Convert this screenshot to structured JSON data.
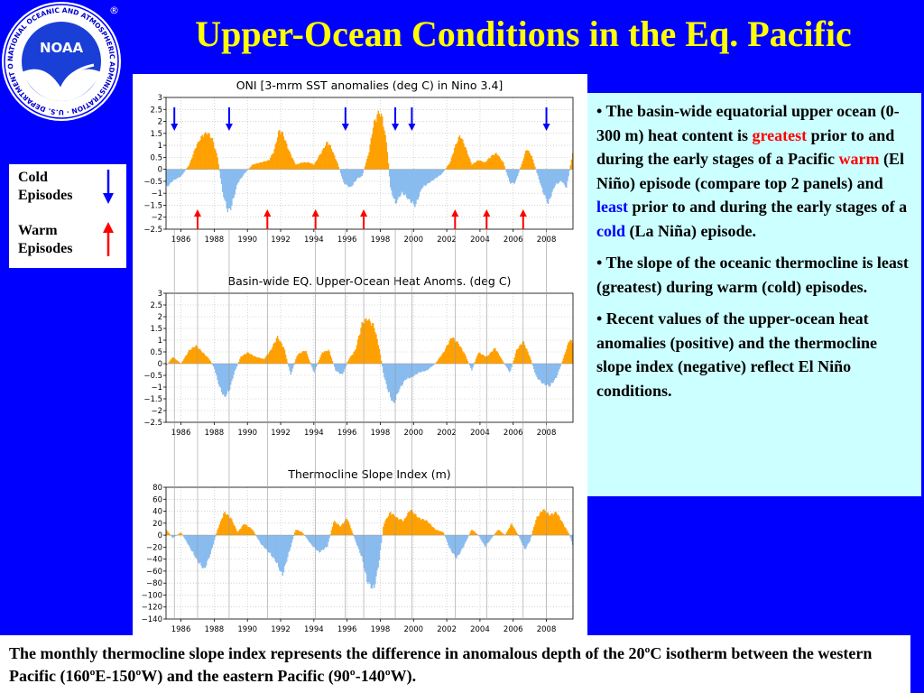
{
  "slide_title": "Upper-Ocean Conditions in the Eq. Pacific",
  "logo": {
    "ring_text": "NATIONAL OCEANIC AND ATMOSPHERIC ADMINISTRATION · U.S. DEPARTMENT OF COMMERCE",
    "center_text": "NOAA",
    "registered_mark": "®"
  },
  "legend": {
    "cold_label_1": "Cold",
    "cold_label_2": "Episodes",
    "warm_label_1": "Warm",
    "warm_label_2": "Episodes",
    "cold_color": "#0000ff",
    "warm_color": "#ff0000"
  },
  "bullets": [
    {
      "parts": [
        {
          "t": "• The basin-wide equatorial upper ocean (0-300 m) heat content is "
        },
        {
          "t": "greatest",
          "c": "red"
        },
        {
          "t": " prior to and during the early stages of a Pacific "
        },
        {
          "t": "warm",
          "c": "red"
        },
        {
          "t": " (El Niño) episode (compare top 2 panels) and "
        },
        {
          "t": "least",
          "c": "blue"
        },
        {
          "t": " prior to and during the early stages of a "
        },
        {
          "t": "cold",
          "c": "blue"
        },
        {
          "t": " (La Niña) episode."
        }
      ]
    },
    {
      "parts": [
        {
          "t": "• The slope of the oceanic thermocline is least (greatest) during warm (cold) episodes."
        }
      ]
    },
    {
      "parts": [
        {
          "t": "• Recent values of the upper-ocean heat anomalies (positive) and the thermocline slope index (negative) reflect El Niño conditions."
        }
      ]
    }
  ],
  "caption": "The monthly thermocline slope index represents the difference in anomalous depth of the 20ºC isotherm between the western Pacific (160ºE-150ºW) and the eastern Pacific (90º-140ºW).",
  "colors": {
    "positive_fill": "#ffa000",
    "negative_fill": "#88bbee",
    "background": "#0000ff",
    "title": "#ffff00"
  },
  "chart_data": [
    {
      "type": "area",
      "title": "ONI [3-mrm SST anomalies (deg C) in Nino 3.4]",
      "xlim": [
        1985.1,
        2009.6
      ],
      "ylim": [
        -2.5,
        3
      ],
      "yticks": [
        3,
        2.5,
        2,
        1.5,
        1,
        0.5,
        0,
        -0.5,
        -1,
        -1.5,
        -2,
        -2.5
      ],
      "ytick_labels": [
        "3",
        "2.5",
        "2",
        "1.5",
        "1",
        "0.5",
        "0",
        "−0.5",
        "−1",
        "−1.5",
        "−2",
        "−2.5"
      ],
      "xticks": [
        1986,
        1988,
        1990,
        1992,
        1994,
        1996,
        1998,
        2000,
        2002,
        2004,
        2006,
        2008
      ],
      "grid": true,
      "x": [
        1985.1,
        1985.5,
        1986.0,
        1986.5,
        1986.9,
        1987.3,
        1987.6,
        1987.9,
        1988.2,
        1988.5,
        1988.8,
        1989.0,
        1989.4,
        1989.8,
        1990.3,
        1990.8,
        1991.3,
        1991.6,
        1991.9,
        1992.1,
        1992.5,
        1992.9,
        1993.3,
        1993.7,
        1994.0,
        1994.5,
        1994.8,
        1995.0,
        1995.4,
        1995.8,
        1996.2,
        1996.6,
        1996.9,
        1997.3,
        1997.6,
        1997.9,
        1998.1,
        1998.4,
        1998.6,
        1998.9,
        1999.3,
        1999.7,
        2000.1,
        2000.5,
        2000.9,
        2001.3,
        2001.7,
        2002.2,
        2002.5,
        2002.8,
        2003.1,
        2003.5,
        2003.9,
        2004.3,
        2004.7,
        2005.0,
        2005.4,
        2005.8,
        2006.1,
        2006.5,
        2006.8,
        2007.1,
        2007.4,
        2007.8,
        2008.1,
        2008.5,
        2008.9,
        2009.2,
        2009.6
      ],
      "values": [
        -0.8,
        -0.5,
        -0.3,
        0.2,
        1.0,
        1.5,
        1.6,
        1.3,
        0.5,
        -1.0,
        -1.8,
        -1.7,
        -0.6,
        -0.2,
        0.2,
        0.3,
        0.4,
        0.8,
        1.7,
        1.6,
        0.8,
        0.2,
        0.3,
        0.3,
        0.2,
        0.8,
        1.2,
        1.0,
        0.3,
        -0.6,
        -0.8,
        -0.4,
        -0.3,
        0.7,
        2.0,
        2.5,
        2.3,
        1.0,
        -0.8,
        -1.5,
        -1.0,
        -1.3,
        -1.6,
        -0.8,
        -0.6,
        -0.4,
        -0.2,
        0.3,
        1.0,
        1.5,
        1.0,
        0.2,
        0.4,
        0.3,
        0.6,
        0.7,
        0.3,
        -0.6,
        -0.6,
        0.2,
        0.9,
        0.6,
        -0.1,
        -1.0,
        -1.5,
        -0.7,
        -0.5,
        -0.8,
        0.8
      ],
      "cold_episode_arrows_x": [
        1985.6,
        1988.9,
        1995.9,
        1998.9,
        1999.9,
        2008.0
      ],
      "warm_episode_arrows_x": [
        1987.0,
        1991.2,
        1994.1,
        1997.0,
        2002.5,
        2004.4,
        2006.6
      ]
    },
    {
      "type": "area",
      "title": "Basin-wide EQ. Upper-Ocean Heat Anoms. (deg C)",
      "xlim": [
        1985.1,
        2009.6
      ],
      "ylim": [
        -2.5,
        3
      ],
      "yticks": [
        3,
        2.5,
        2,
        1.5,
        1,
        0.5,
        0,
        -0.5,
        -1,
        -1.5,
        -2,
        -2.5
      ],
      "ytick_labels": [
        "3",
        "2.5",
        "2",
        "1.5",
        "1",
        "0.5",
        "0",
        "−0.5",
        "−1",
        "−1.5",
        "−2",
        "−2.5"
      ],
      "xticks": [
        1986,
        1988,
        1990,
        1992,
        1994,
        1996,
        1998,
        2000,
        2002,
        2004,
        2006,
        2008
      ],
      "grid": true,
      "x": [
        1985.1,
        1985.5,
        1986.0,
        1986.5,
        1986.9,
        1987.3,
        1987.7,
        1988.0,
        1988.3,
        1988.6,
        1988.9,
        1989.2,
        1989.6,
        1990.0,
        1990.5,
        1991.0,
        1991.4,
        1991.8,
        1992.2,
        1992.6,
        1993.0,
        1993.5,
        1994.0,
        1994.5,
        1994.9,
        1995.3,
        1995.7,
        1996.1,
        1996.5,
        1996.9,
        1997.2,
        1997.6,
        1997.9,
        1998.2,
        1998.5,
        1998.8,
        1999.1,
        1999.5,
        1999.9,
        2000.3,
        2000.8,
        2001.3,
        2001.8,
        2002.3,
        2002.7,
        2003.1,
        2003.5,
        2003.9,
        2004.4,
        2004.9,
        2005.3,
        2005.8,
        2006.2,
        2006.6,
        2007.0,
        2007.4,
        2007.8,
        2008.2,
        2008.6,
        2009.0,
        2009.4,
        2009.6
      ],
      "values": [
        -0.1,
        0.3,
        0.0,
        0.6,
        0.8,
        0.5,
        0.2,
        -0.2,
        -1.0,
        -1.5,
        -1.2,
        -0.4,
        0.3,
        0.5,
        0.3,
        0.2,
        0.6,
        1.2,
        0.7,
        -0.5,
        0.4,
        0.6,
        -0.4,
        0.5,
        0.6,
        -0.3,
        -0.5,
        0.2,
        0.6,
        1.8,
        2.0,
        1.7,
        0.8,
        -0.5,
        -1.3,
        -1.8,
        -1.2,
        -0.7,
        -0.6,
        -0.4,
        -0.3,
        0.0,
        0.5,
        1.2,
        0.9,
        0.4,
        -0.3,
        0.5,
        0.3,
        0.7,
        0.2,
        -0.4,
        0.6,
        1.0,
        0.3,
        -0.6,
        -0.9,
        -1.0,
        -0.6,
        0.2,
        1.1,
        0.9
      ]
    },
    {
      "type": "area",
      "title": "Thermocline Slope Index (m)",
      "xlim": [
        1985.1,
        2009.6
      ],
      "ylim": [
        -140,
        80
      ],
      "yticks": [
        80,
        60,
        40,
        20,
        0,
        -20,
        -40,
        -60,
        -80,
        -100,
        -120,
        -140
      ],
      "ytick_labels": [
        "80",
        "60",
        "40",
        "20",
        "0",
        "−20",
        "−40",
        "−60",
        "−80",
        "−100",
        "−120",
        "−140"
      ],
      "xticks": [
        1986,
        1988,
        1990,
        1992,
        1994,
        1996,
        1998,
        2000,
        2002,
        2004,
        2006,
        2008
      ],
      "grid": true,
      "x": [
        1985.1,
        1985.5,
        1986.0,
        1986.5,
        1987.0,
        1987.4,
        1987.8,
        1988.2,
        1988.6,
        1989.0,
        1989.4,
        1989.8,
        1990.3,
        1990.8,
        1991.3,
        1991.7,
        1992.1,
        1992.5,
        1992.9,
        1993.3,
        1993.8,
        1994.3,
        1994.8,
        1995.2,
        1995.6,
        1996.0,
        1996.5,
        1996.9,
        1997.2,
        1997.6,
        1997.9,
        1998.2,
        1998.6,
        1999.0,
        1999.4,
        1999.8,
        2000.3,
        2000.8,
        2001.3,
        2001.8,
        2002.2,
        2002.6,
        2003.0,
        2003.5,
        2003.9,
        2004.3,
        2004.7,
        2005.1,
        2005.5,
        2005.9,
        2006.3,
        2006.7,
        2007.0,
        2007.4,
        2007.8,
        2008.2,
        2008.6,
        2009.0,
        2009.4,
        2009.6
      ],
      "values": [
        10,
        -5,
        5,
        -20,
        -45,
        -60,
        -30,
        10,
        40,
        30,
        5,
        20,
        10,
        -15,
        -30,
        -45,
        -70,
        -30,
        10,
        5,
        -15,
        -30,
        -20,
        25,
        15,
        30,
        -10,
        -40,
        -80,
        -95,
        -50,
        20,
        40,
        30,
        25,
        45,
        30,
        25,
        10,
        5,
        -25,
        -40,
        -20,
        10,
        0,
        -20,
        -5,
        10,
        0,
        20,
        0,
        -25,
        -10,
        30,
        45,
        35,
        40,
        20,
        0,
        -20
      ]
    }
  ]
}
